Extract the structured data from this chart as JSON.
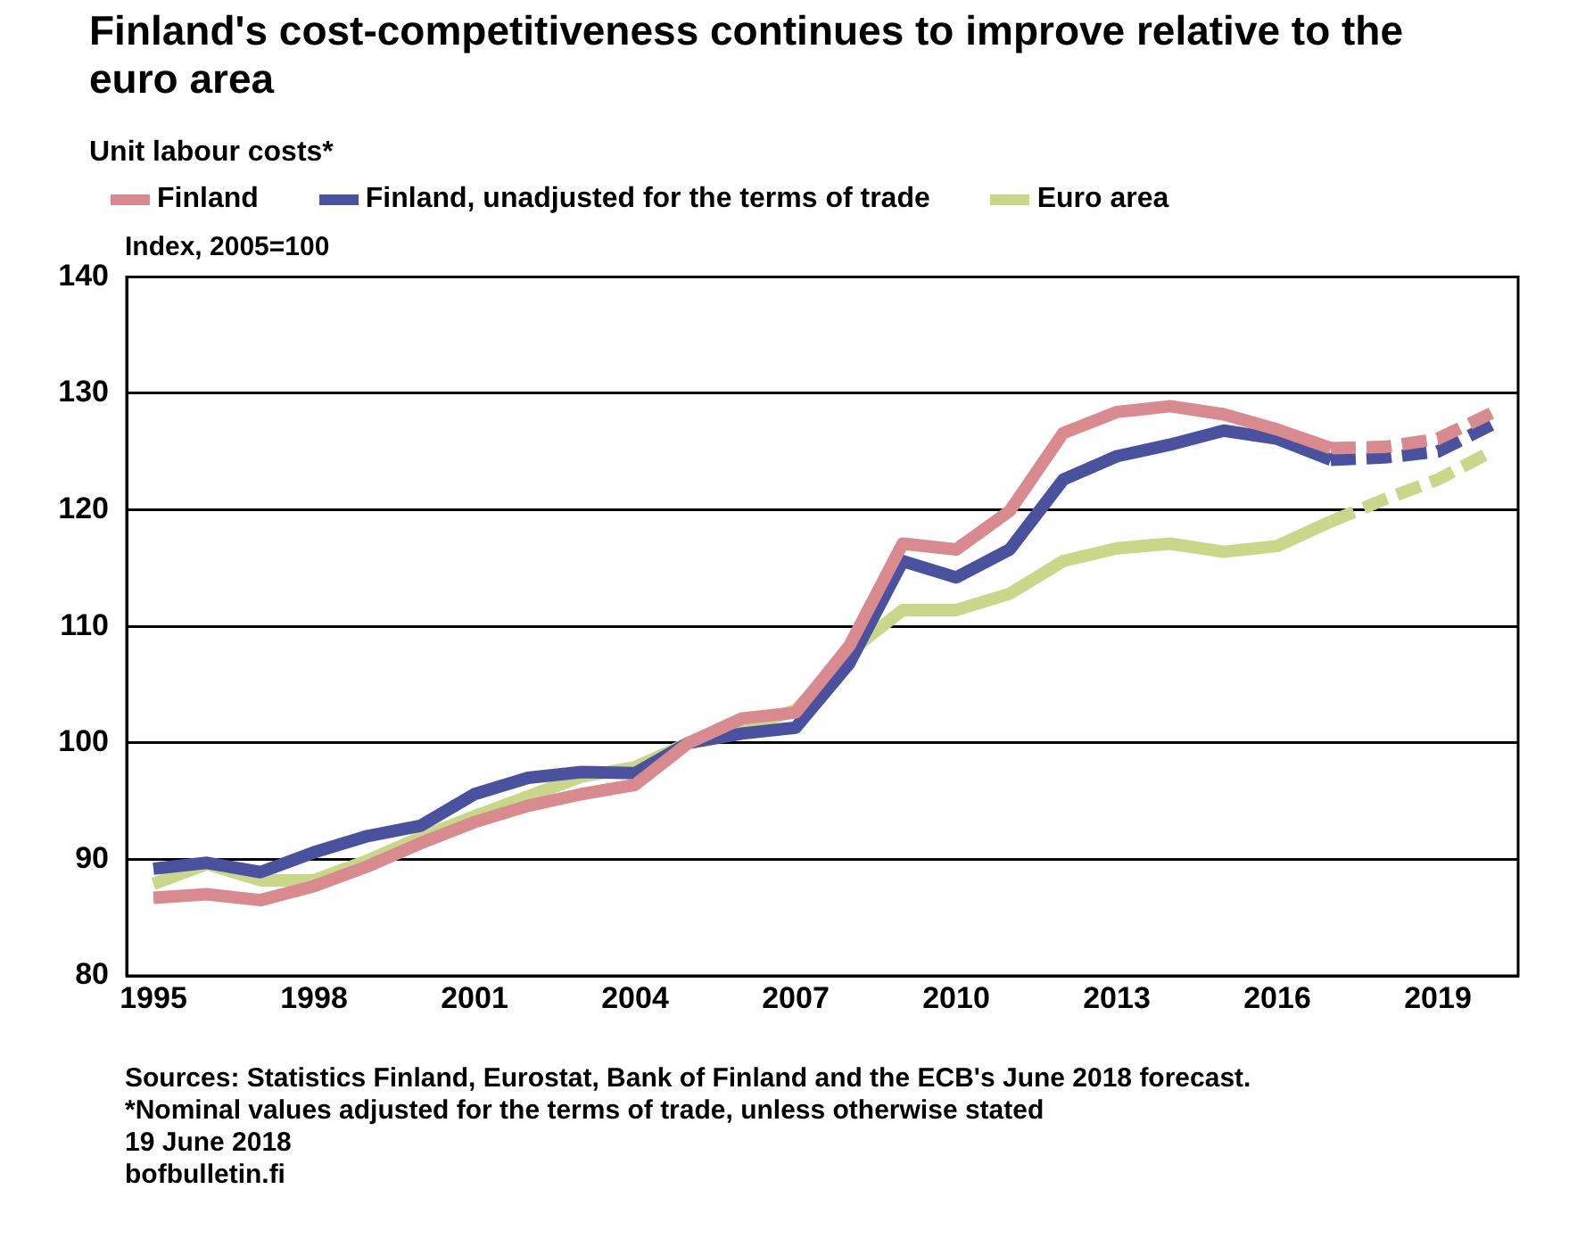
{
  "chart_data": {
    "type": "line",
    "title": "Finland's cost-competitiveness continues to improve relative to the euro area",
    "subtitle": "Unit labour costs*",
    "ylabel": "Index, 2005=100",
    "xlim": [
      1994.5,
      2020.5
    ],
    "xticks": [
      1995,
      1998,
      2001,
      2004,
      2007,
      2010,
      2013,
      2016,
      2019
    ],
    "ylim": [
      80,
      140
    ],
    "yticks": [
      80,
      90,
      100,
      110,
      120,
      130,
      140
    ],
    "grid": "y",
    "legend": "top",
    "line_style": "solid",
    "series": [
      {
        "name": "Finland",
        "color": "#d98a8e",
        "x": [
          1995,
          1996,
          1997,
          1998,
          1999,
          2000,
          2001,
          2002,
          2003,
          2004,
          2005,
          2006,
          2007,
          2008,
          2009,
          2010,
          2011,
          2012,
          2013,
          2014,
          2015,
          2016,
          2017
        ],
        "values": [
          86.7,
          87.0,
          86.5,
          87.7,
          89.4,
          91.4,
          93.2,
          94.6,
          95.6,
          96.4,
          100,
          102.1,
          102.6,
          108.3,
          117.1,
          116.6,
          119.9,
          126.6,
          128.4,
          128.9,
          128.2,
          126.9,
          125.3
        ]
      },
      {
        "name": "Finland, unadjusted for the terms of trade",
        "color": "#4a52a0",
        "x": [
          1995,
          1996,
          1997,
          1998,
          1999,
          2000,
          2001,
          2002,
          2003,
          2004,
          2005,
          2006,
          2007,
          2008,
          2009,
          2010,
          2011,
          2012,
          2013,
          2014,
          2015,
          2016,
          2017
        ],
        "values": [
          89.2,
          89.7,
          88.9,
          90.6,
          92.0,
          92.9,
          95.6,
          97.0,
          97.5,
          97.4,
          100,
          100.8,
          101.3,
          106.8,
          115.6,
          114.2,
          116.6,
          122.6,
          124.6,
          125.6,
          126.8,
          126.1,
          124.3
        ]
      },
      {
        "name": "Euro area",
        "color": "#c8d888",
        "x": [
          1995,
          1996,
          1997,
          1998,
          1999,
          2000,
          2001,
          2002,
          2003,
          2004,
          2005,
          2006,
          2007,
          2008,
          2009,
          2010,
          2011,
          2012,
          2013,
          2014,
          2015,
          2016,
          2017
        ],
        "values": [
          87.9,
          89.6,
          88.2,
          88.2,
          89.9,
          91.9,
          93.7,
          95.4,
          97.1,
          97.9,
          100,
          101.3,
          102.8,
          107.8,
          111.4,
          111.4,
          112.8,
          115.6,
          116.7,
          117.1,
          116.4,
          116.9,
          119.0
        ]
      },
      {
        "color": "#d98a8e",
        "line_style": "dashed",
        "x": [
          2017,
          2018,
          2019,
          2020
        ],
        "values": [
          125.3,
          125.4,
          126.1,
          128.3
        ]
      },
      {
        "color": "#4a52a0",
        "line_style": "dashed",
        "x": [
          2017,
          2018,
          2019,
          2020
        ],
        "values": [
          124.3,
          124.5,
          125.0,
          127.3
        ]
      },
      {
        "color": "#c8d888",
        "line_style": "dashed",
        "x": [
          2017,
          2018,
          2019,
          2020
        ],
        "values": [
          119.0,
          120.9,
          122.6,
          125.0
        ]
      }
    ],
    "annotations": [
      "Sources: Statistics Finland, Eurostat, Bank of Finland and the ECB's June 2018 forecast.",
      "*Nominal values adjusted for the terms of trade, unless otherwise stated",
      "19 June 2018",
      "bofbulletin.fi"
    ]
  }
}
